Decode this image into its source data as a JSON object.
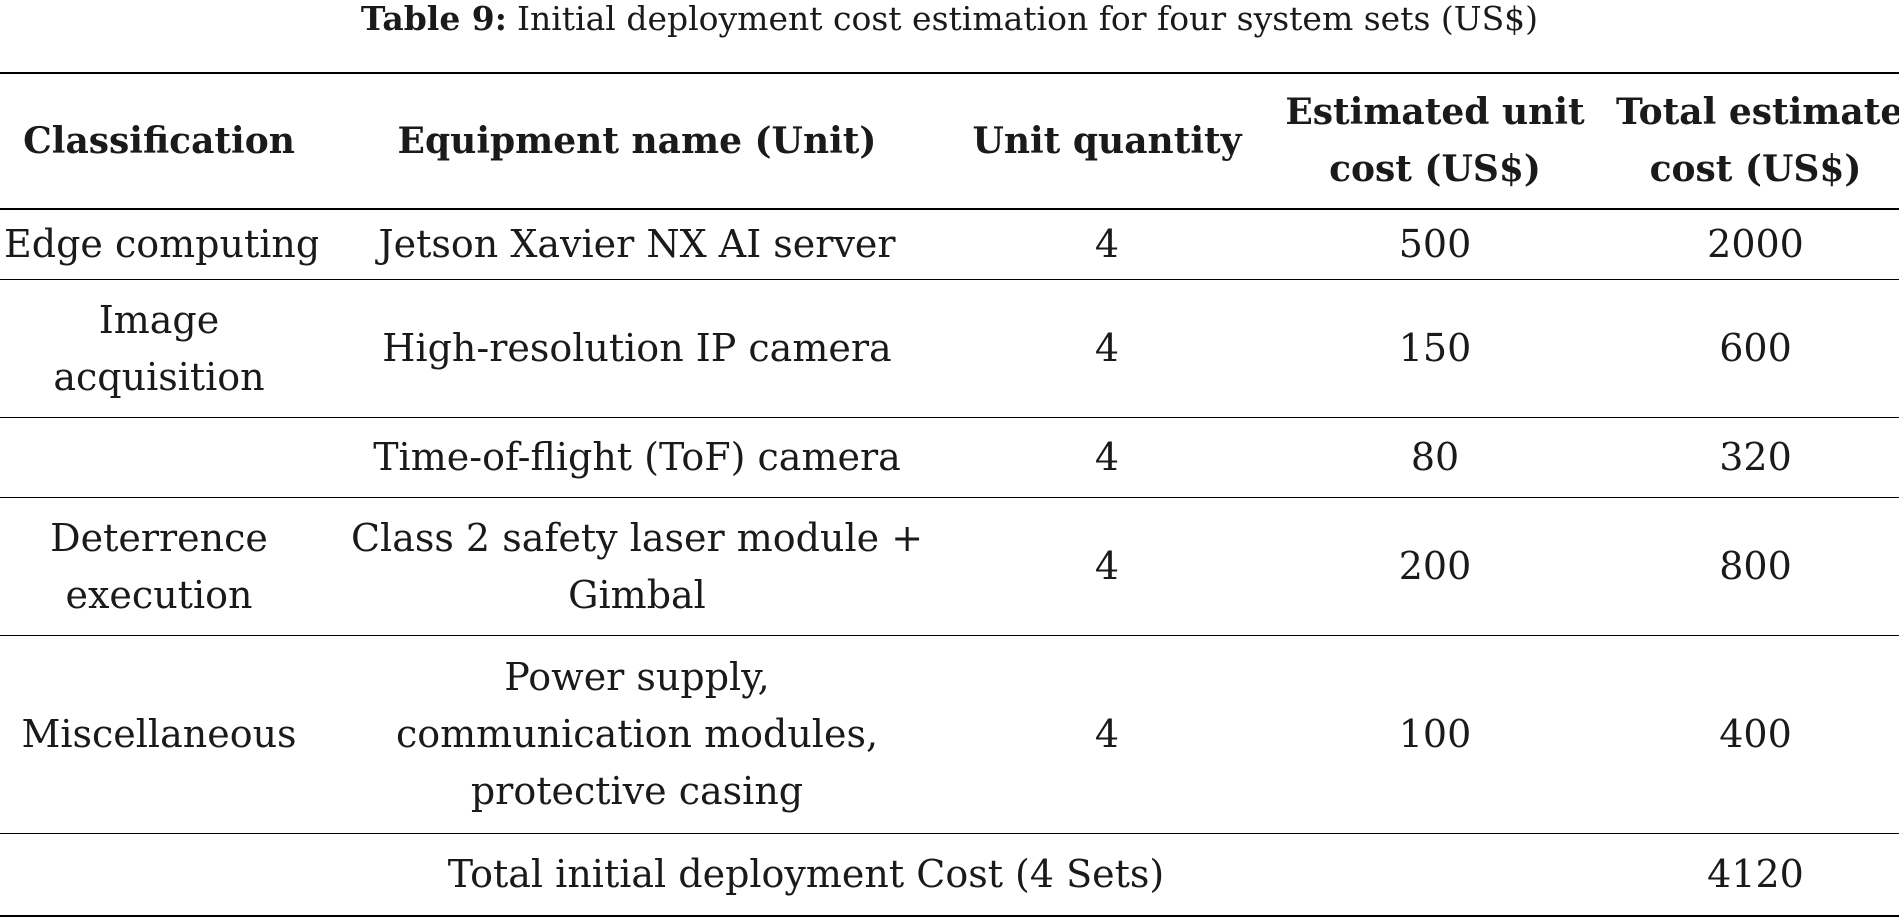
{
  "caption": {
    "label": "Table 9:",
    "text": "Initial deployment cost estimation for four system sets (US$)"
  },
  "table": {
    "headers": [
      [
        "Classification"
      ],
      [
        "Equipment name (Unit)"
      ],
      [
        "Unit quantity"
      ],
      [
        "Estimated unit",
        "cost (US$)"
      ],
      [
        "Total estimated",
        "cost (US$)"
      ]
    ],
    "rows": [
      {
        "classification": [
          "Edge computing"
        ],
        "equipment": [
          "Jetson Xavier NX AI server"
        ],
        "quantity": "4",
        "unit_cost": "500",
        "total_cost": "2000"
      },
      {
        "classification": [
          "Image",
          "acquisition"
        ],
        "equipment": [
          "High-resolution IP camera"
        ],
        "quantity": "4",
        "unit_cost": "150",
        "total_cost": "600"
      },
      {
        "classification": [
          ""
        ],
        "equipment": [
          "Time-of-flight (ToF) camera"
        ],
        "quantity": "4",
        "unit_cost": "80",
        "total_cost": "320"
      },
      {
        "classification": [
          "Deterrence",
          "execution"
        ],
        "equipment": [
          "Class 2 safety laser module +",
          "Gimbal"
        ],
        "quantity": "4",
        "unit_cost": "200",
        "total_cost": "800"
      },
      {
        "classification": [
          "Miscellaneous"
        ],
        "equipment": [
          "Power supply,",
          "communication modules,",
          "protective casing"
        ],
        "quantity": "4",
        "unit_cost": "100",
        "total_cost": "400"
      }
    ],
    "total_row": {
      "label": "Total initial deployment Cost (4 Sets)",
      "value": "4120"
    }
  }
}
